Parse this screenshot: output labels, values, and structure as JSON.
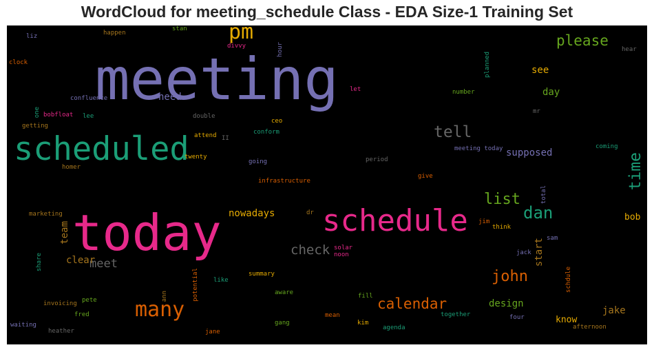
{
  "chart_data": {
    "type": "wordcloud",
    "title": "WordCloud for meeting_schedule Class - EDA Size-1 Training Set",
    "background": "#000000",
    "palette": [
      "#7570b3",
      "#1b9e77",
      "#e7298a",
      "#d95f02",
      "#66a61e",
      "#e6ab02",
      "#a6761d",
      "#666666"
    ],
    "words": [
      {
        "text": "meeting",
        "color": "#7570b3"
      },
      {
        "text": "today",
        "color": "#e7298a"
      },
      {
        "text": "scheduled",
        "color": "#1b9e77"
      },
      {
        "text": "schedule",
        "color": "#e7298a"
      },
      {
        "text": "pm",
        "color": "#e6ab02"
      },
      {
        "text": "many",
        "color": "#d95f02"
      },
      {
        "text": "please",
        "color": "#66a61e"
      },
      {
        "text": "tell",
        "color": "#666666"
      },
      {
        "text": "time",
        "color": "#1b9e77"
      },
      {
        "text": "list",
        "color": "#66a61e"
      },
      {
        "text": "dan",
        "color": "#1b9e77"
      },
      {
        "text": "calendar",
        "color": "#d95f02"
      },
      {
        "text": "john",
        "color": "#d95f02"
      },
      {
        "text": "check",
        "color": "#666666"
      },
      {
        "text": "meet",
        "color": "#666666"
      },
      {
        "text": "need",
        "color": "#7570b3"
      },
      {
        "text": "see",
        "color": "#e6ab02"
      },
      {
        "text": "day",
        "color": "#66a61e"
      },
      {
        "text": "supposed",
        "color": "#7570b3"
      },
      {
        "text": "nowadays",
        "color": "#e6ab02"
      },
      {
        "text": "clear",
        "color": "#a6761d"
      },
      {
        "text": "team",
        "color": "#a6761d"
      },
      {
        "text": "start",
        "color": "#a6761d"
      },
      {
        "text": "design",
        "color": "#66a61e"
      },
      {
        "text": "jake",
        "color": "#a6761d"
      },
      {
        "text": "know",
        "color": "#e6ab02"
      },
      {
        "text": "bob",
        "color": "#e6ab02"
      },
      {
        "text": "hour",
        "color": "#7570b3"
      },
      {
        "text": "liz",
        "color": "#7570b3"
      },
      {
        "text": "happen",
        "color": "#a6761d"
      },
      {
        "text": "stan",
        "color": "#66a61e"
      },
      {
        "text": "divvy",
        "color": "#e7298a"
      },
      {
        "text": "hear",
        "color": "#666666"
      },
      {
        "text": "clock",
        "color": "#d95f02"
      },
      {
        "text": "planned",
        "color": "#1b9e77"
      },
      {
        "text": "let",
        "color": "#e7298a"
      },
      {
        "text": "number",
        "color": "#66a61e"
      },
      {
        "text": "confluence",
        "color": "#7570b3"
      },
      {
        "text": "mr",
        "color": "#666666"
      },
      {
        "text": "one",
        "color": "#1b9e77"
      },
      {
        "text": "bobfloat",
        "color": "#e7298a"
      },
      {
        "text": "lee",
        "color": "#1b9e77"
      },
      {
        "text": "double",
        "color": "#666666"
      },
      {
        "text": "ceo",
        "color": "#e6ab02"
      },
      {
        "text": "getting",
        "color": "#a6761d"
      },
      {
        "text": "conform",
        "color": "#1b9e77"
      },
      {
        "text": "attend",
        "color": "#e6ab02"
      },
      {
        "text": "II",
        "color": "#666666"
      },
      {
        "text": "meeting today",
        "color": "#7570b3"
      },
      {
        "text": "coming",
        "color": "#1b9e77"
      },
      {
        "text": "twenty",
        "color": "#e6ab02"
      },
      {
        "text": "going",
        "color": "#7570b3"
      },
      {
        "text": "period",
        "color": "#666666"
      },
      {
        "text": "homer",
        "color": "#a6761d"
      },
      {
        "text": "infrastructure",
        "color": "#d95f02"
      },
      {
        "text": "give",
        "color": "#d95f02"
      },
      {
        "text": "total",
        "color": "#7570b3"
      },
      {
        "text": "marketing",
        "color": "#a6761d"
      },
      {
        "text": "dr",
        "color": "#a6761d"
      },
      {
        "text": "jim",
        "color": "#d95f02"
      },
      {
        "text": "think",
        "color": "#e6ab02"
      },
      {
        "text": "sam",
        "color": "#7570b3"
      },
      {
        "text": "solar",
        "color": "#e7298a"
      },
      {
        "text": "noon",
        "color": "#e7298a"
      },
      {
        "text": "jack",
        "color": "#7570b3"
      },
      {
        "text": "share",
        "color": "#1b9e77"
      },
      {
        "text": "schdule",
        "color": "#d95f02"
      },
      {
        "text": "summary",
        "color": "#e6ab02"
      },
      {
        "text": "potential",
        "color": "#d95f02"
      },
      {
        "text": "like",
        "color": "#1b9e77"
      },
      {
        "text": "aware",
        "color": "#66a61e"
      },
      {
        "text": "ann",
        "color": "#a6761d"
      },
      {
        "text": "fill",
        "color": "#66a61e"
      },
      {
        "text": "invoicing",
        "color": "#a6761d"
      },
      {
        "text": "pete",
        "color": "#66a61e"
      },
      {
        "text": "fred",
        "color": "#66a61e"
      },
      {
        "text": "gang",
        "color": "#66a61e"
      },
      {
        "text": "mean",
        "color": "#d95f02"
      },
      {
        "text": "together",
        "color": "#1b9e77"
      },
      {
        "text": "four",
        "color": "#7570b3"
      },
      {
        "text": "waiting",
        "color": "#7570b3"
      },
      {
        "text": "kim",
        "color": "#e6ab02"
      },
      {
        "text": "agenda",
        "color": "#1b9e77"
      },
      {
        "text": "afternoon",
        "color": "#a6761d"
      },
      {
        "text": "heather",
        "color": "#666666"
      },
      {
        "text": "jane",
        "color": "#d95f02"
      }
    ]
  }
}
